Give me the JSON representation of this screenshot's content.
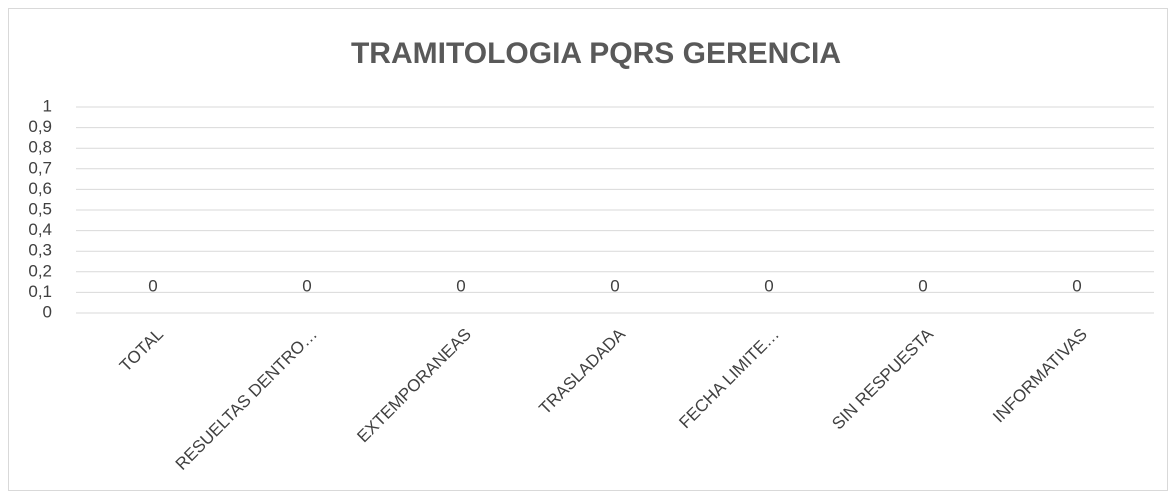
{
  "chart_data": {
    "type": "bar",
    "title": "TRAMITOLOGIA PQRS GERENCIA",
    "categories": [
      "TOTAL",
      "RESUELTAS DENTRO…",
      "EXTEMPORANEAS",
      "TRASLADADA",
      "FECHA LIMITE…",
      "SIN RESPUESTA",
      "INFORMATIVAS"
    ],
    "values": [
      0,
      0,
      0,
      0,
      0,
      0,
      0
    ],
    "color": "#4472c4",
    "ylim": [
      0,
      1
    ],
    "yticks": [
      0,
      {
        "value": 0.1,
        "label": "0,1"
      },
      {
        "value": 0.2,
        "label": "0,2"
      },
      {
        "value": 0.3,
        "label": "0,3"
      },
      {
        "value": 0.4,
        "label": "0,4"
      },
      {
        "value": 0.5,
        "label": "0,5"
      },
      {
        "value": 0.6,
        "label": "0,6"
      },
      {
        "value": 0.7,
        "label": "0,7"
      },
      {
        "value": 0.8,
        "label": "0,8"
      },
      {
        "value": 0.9,
        "label": "0,9"
      },
      1
    ],
    "grid": true
  }
}
